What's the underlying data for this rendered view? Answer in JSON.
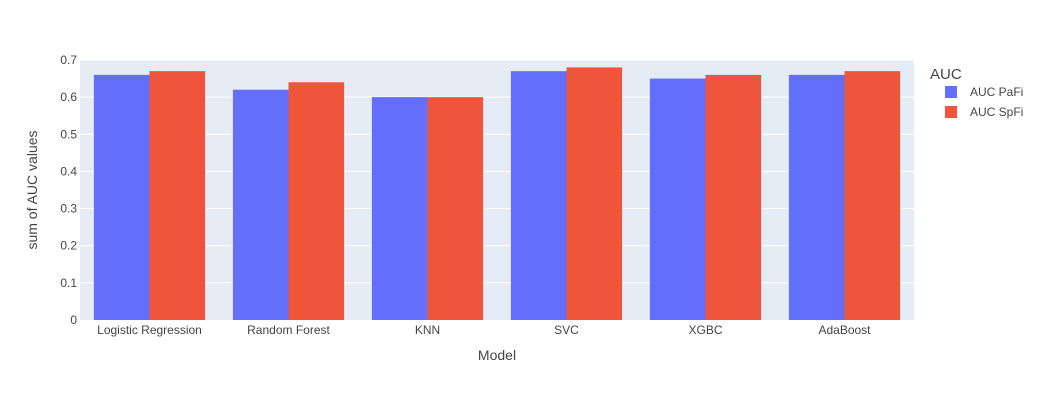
{
  "chart_data": {
    "type": "bar",
    "barmode": "group",
    "title": "",
    "xlabel": "Model",
    "ylabel": "sum of AUC values",
    "ylim": [
      0,
      0.7
    ],
    "yticks": [
      0,
      0.1,
      0.2,
      0.3,
      0.4,
      0.5,
      0.6,
      0.7
    ],
    "ytick_labels": [
      "0",
      "0.1",
      "0.2",
      "0.3",
      "0.4",
      "0.5",
      "0.6",
      "0.7"
    ],
    "grid": true,
    "categories": [
      "Logistic Regression",
      "Random Forest",
      "KNN",
      "SVC",
      "XGBC",
      "AdaBoost"
    ],
    "legend": {
      "title": "AUC",
      "placement": "right"
    },
    "series": [
      {
        "name": "AUC PaFi",
        "color": "#636efa",
        "values": [
          0.66,
          0.62,
          0.6,
          0.67,
          0.65,
          0.66
        ]
      },
      {
        "name": "AUC SpFi",
        "color": "#ef553b",
        "values": [
          0.67,
          0.64,
          0.6,
          0.68,
          0.66,
          0.67
        ]
      }
    ],
    "colors": {
      "plot_bg": "#e5ecf6",
      "grid": "#ffffff",
      "text": "#444444"
    }
  }
}
